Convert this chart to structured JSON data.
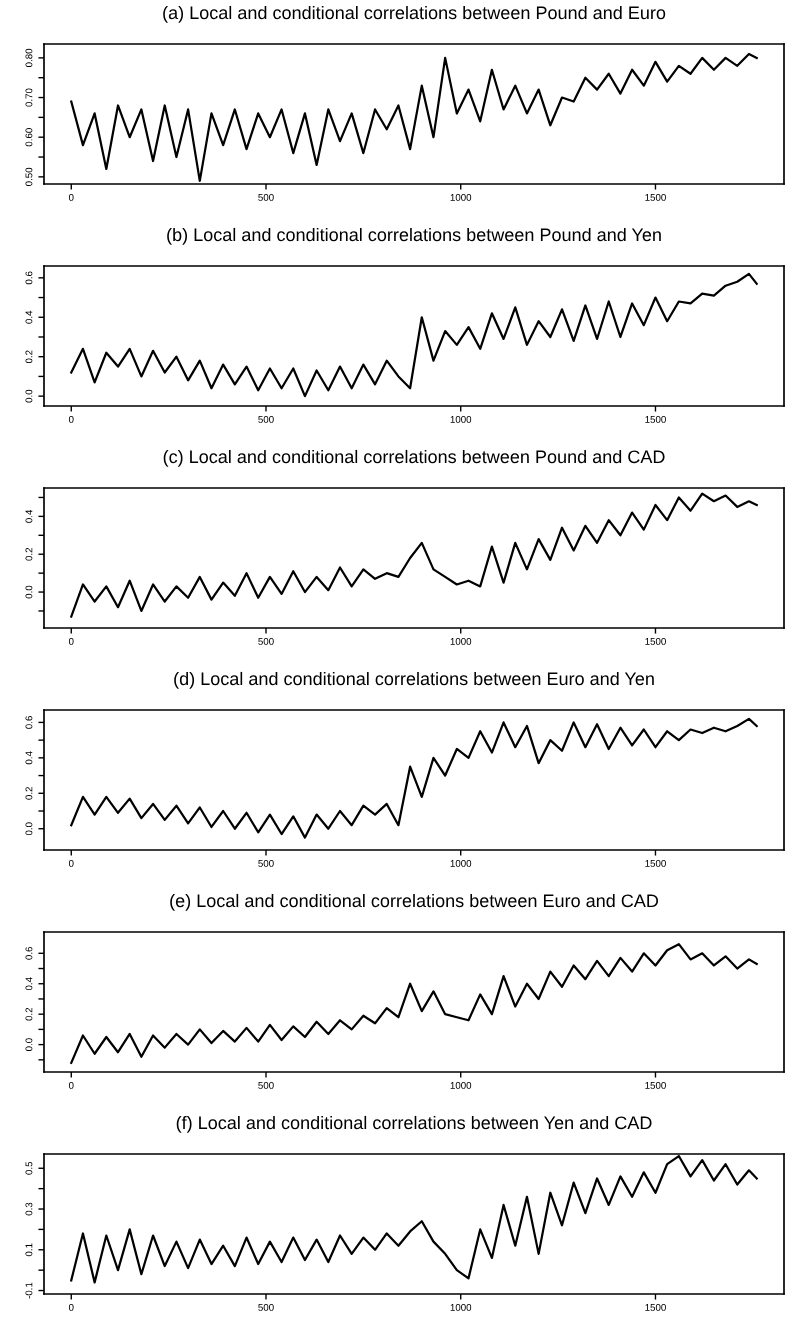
{
  "chart_data": [
    {
      "type": "line",
      "title": "(a) Local and conditional correlations between Pound and Euro",
      "color": "#000000",
      "xlim": [
        -70,
        1830
      ],
      "xticks": [
        0,
        500,
        1000,
        1500
      ],
      "ylim": [
        0.482,
        0.835
      ],
      "yticks": [
        {
          "value": 0.5,
          "label": "0.50"
        },
        {
          "value": 0.55,
          "label": null
        },
        {
          "value": 0.6,
          "label": "0.60"
        },
        {
          "value": 0.65,
          "label": null
        },
        {
          "value": 0.7,
          "label": "0.70"
        },
        {
          "value": 0.75,
          "label": null
        },
        {
          "value": 0.8,
          "label": "0.80"
        }
      ],
      "x": [
        0,
        30,
        60,
        90,
        120,
        150,
        180,
        210,
        240,
        270,
        300,
        330,
        360,
        390,
        420,
        450,
        480,
        510,
        540,
        570,
        600,
        630,
        660,
        690,
        720,
        750,
        780,
        810,
        840,
        870,
        900,
        930,
        960,
        990,
        1020,
        1050,
        1080,
        1110,
        1140,
        1170,
        1200,
        1230,
        1260,
        1290,
        1320,
        1350,
        1380,
        1410,
        1440,
        1470,
        1500,
        1530,
        1560,
        1590,
        1620,
        1650,
        1680,
        1710,
        1740,
        1760
      ],
      "values": [
        0.69,
        0.58,
        0.66,
        0.52,
        0.68,
        0.6,
        0.67,
        0.54,
        0.68,
        0.55,
        0.67,
        0.49,
        0.66,
        0.58,
        0.67,
        0.57,
        0.66,
        0.6,
        0.67,
        0.56,
        0.66,
        0.53,
        0.67,
        0.59,
        0.66,
        0.56,
        0.67,
        0.62,
        0.68,
        0.57,
        0.73,
        0.6,
        0.8,
        0.66,
        0.72,
        0.64,
        0.77,
        0.67,
        0.73,
        0.66,
        0.72,
        0.63,
        0.7,
        0.69,
        0.75,
        0.72,
        0.76,
        0.71,
        0.77,
        0.73,
        0.79,
        0.74,
        0.78,
        0.76,
        0.8,
        0.77,
        0.8,
        0.78,
        0.81,
        0.8
      ]
    },
    {
      "type": "line",
      "title": "(b) Local and conditional correlations between Pound and Yen",
      "color": "#000000",
      "xlim": [
        -70,
        1830
      ],
      "xticks": [
        0,
        500,
        1000,
        1500
      ],
      "ylim": [
        -0.05,
        0.66
      ],
      "yticks": [
        {
          "value": 0.0,
          "label": "0.0"
        },
        {
          "value": 0.1,
          "label": null
        },
        {
          "value": 0.2,
          "label": "0.2"
        },
        {
          "value": 0.3,
          "label": null
        },
        {
          "value": 0.4,
          "label": "0.4"
        },
        {
          "value": 0.5,
          "label": null
        },
        {
          "value": 0.6,
          "label": "0.6"
        }
      ],
      "x": [
        0,
        30,
        60,
        90,
        120,
        150,
        180,
        210,
        240,
        270,
        300,
        330,
        360,
        390,
        420,
        450,
        480,
        510,
        540,
        570,
        600,
        630,
        660,
        690,
        720,
        750,
        780,
        810,
        840,
        870,
        900,
        930,
        960,
        990,
        1020,
        1050,
        1080,
        1110,
        1140,
        1170,
        1200,
        1230,
        1260,
        1290,
        1320,
        1350,
        1380,
        1410,
        1440,
        1470,
        1500,
        1530,
        1560,
        1590,
        1620,
        1650,
        1680,
        1710,
        1740,
        1760
      ],
      "values": [
        0.12,
        0.24,
        0.07,
        0.22,
        0.15,
        0.24,
        0.1,
        0.23,
        0.12,
        0.2,
        0.08,
        0.18,
        0.04,
        0.16,
        0.06,
        0.15,
        0.03,
        0.14,
        0.04,
        0.14,
        0.0,
        0.13,
        0.03,
        0.15,
        0.04,
        0.16,
        0.06,
        0.18,
        0.1,
        0.04,
        0.4,
        0.18,
        0.33,
        0.26,
        0.35,
        0.24,
        0.42,
        0.29,
        0.45,
        0.26,
        0.38,
        0.3,
        0.44,
        0.28,
        0.46,
        0.29,
        0.48,
        0.3,
        0.47,
        0.36,
        0.5,
        0.38,
        0.48,
        0.47,
        0.52,
        0.51,
        0.56,
        0.58,
        0.62,
        0.57
      ]
    },
    {
      "type": "line",
      "title": "(c) Local and conditional correlations between Pound and CAD",
      "color": "#000000",
      "xlim": [
        -70,
        1830
      ],
      "xticks": [
        0,
        500,
        1000,
        1500
      ],
      "ylim": [
        -0.19,
        0.55
      ],
      "yticks": [
        {
          "value": -0.1,
          "label": null
        },
        {
          "value": 0.0,
          "label": "0.0"
        },
        {
          "value": 0.1,
          "label": null
        },
        {
          "value": 0.2,
          "label": "0.2"
        },
        {
          "value": 0.3,
          "label": null
        },
        {
          "value": 0.4,
          "label": "0.4"
        },
        {
          "value": 0.5,
          "label": null
        }
      ],
      "x": [
        0,
        30,
        60,
        90,
        120,
        150,
        180,
        210,
        240,
        270,
        300,
        330,
        360,
        390,
        420,
        450,
        480,
        510,
        540,
        570,
        600,
        630,
        660,
        690,
        720,
        750,
        780,
        810,
        840,
        870,
        900,
        930,
        960,
        990,
        1020,
        1050,
        1080,
        1110,
        1140,
        1170,
        1200,
        1230,
        1260,
        1290,
        1320,
        1350,
        1380,
        1410,
        1440,
        1470,
        1500,
        1530,
        1560,
        1590,
        1620,
        1650,
        1680,
        1710,
        1740,
        1760
      ],
      "values": [
        -0.13,
        0.04,
        -0.05,
        0.03,
        -0.08,
        0.06,
        -0.1,
        0.04,
        -0.05,
        0.03,
        -0.03,
        0.08,
        -0.04,
        0.05,
        -0.02,
        0.1,
        -0.03,
        0.08,
        -0.01,
        0.11,
        0.0,
        0.08,
        0.01,
        0.13,
        0.03,
        0.12,
        0.07,
        0.1,
        0.08,
        0.18,
        0.26,
        0.12,
        0.08,
        0.04,
        0.06,
        0.03,
        0.24,
        0.05,
        0.26,
        0.12,
        0.28,
        0.17,
        0.34,
        0.22,
        0.35,
        0.26,
        0.38,
        0.3,
        0.42,
        0.33,
        0.46,
        0.38,
        0.5,
        0.43,
        0.52,
        0.48,
        0.51,
        0.45,
        0.48,
        0.46
      ]
    },
    {
      "type": "line",
      "title": "(d) Local and conditional correlations between Euro and Yen",
      "color": "#000000",
      "xlim": [
        -70,
        1830
      ],
      "xticks": [
        0,
        500,
        1000,
        1500
      ],
      "ylim": [
        -0.12,
        0.67
      ],
      "yticks": [
        {
          "value": 0.0,
          "label": "0.0"
        },
        {
          "value": 0.1,
          "label": null
        },
        {
          "value": 0.2,
          "label": "0.2"
        },
        {
          "value": 0.3,
          "label": null
        },
        {
          "value": 0.4,
          "label": "0.4"
        },
        {
          "value": 0.5,
          "label": null
        },
        {
          "value": 0.6,
          "label": "0.6"
        }
      ],
      "x": [
        0,
        30,
        60,
        90,
        120,
        150,
        180,
        210,
        240,
        270,
        300,
        330,
        360,
        390,
        420,
        450,
        480,
        510,
        540,
        570,
        600,
        630,
        660,
        690,
        720,
        750,
        780,
        810,
        840,
        870,
        900,
        930,
        960,
        990,
        1020,
        1050,
        1080,
        1110,
        1140,
        1170,
        1200,
        1230,
        1260,
        1290,
        1320,
        1350,
        1380,
        1410,
        1440,
        1470,
        1500,
        1530,
        1560,
        1590,
        1620,
        1650,
        1680,
        1710,
        1740,
        1760
      ],
      "values": [
        0.02,
        0.18,
        0.08,
        0.18,
        0.09,
        0.17,
        0.06,
        0.14,
        0.05,
        0.13,
        0.03,
        0.12,
        0.01,
        0.1,
        0.0,
        0.09,
        -0.02,
        0.08,
        -0.03,
        0.07,
        -0.05,
        0.08,
        0.0,
        0.1,
        0.02,
        0.13,
        0.08,
        0.14,
        0.02,
        0.35,
        0.18,
        0.4,
        0.3,
        0.45,
        0.4,
        0.55,
        0.43,
        0.6,
        0.46,
        0.58,
        0.37,
        0.5,
        0.44,
        0.6,
        0.46,
        0.59,
        0.45,
        0.57,
        0.47,
        0.56,
        0.46,
        0.55,
        0.5,
        0.56,
        0.54,
        0.57,
        0.55,
        0.58,
        0.62,
        0.58
      ]
    },
    {
      "type": "line",
      "title": "(e) Local and conditional correlations between Euro and CAD",
      "color": "#000000",
      "xlim": [
        -70,
        1830
      ],
      "xticks": [
        0,
        500,
        1000,
        1500
      ],
      "ylim": [
        -0.18,
        0.74
      ],
      "yticks": [
        {
          "value": -0.1,
          "label": null
        },
        {
          "value": 0.0,
          "label": "0.0"
        },
        {
          "value": 0.1,
          "label": null
        },
        {
          "value": 0.2,
          "label": "0.2"
        },
        {
          "value": 0.3,
          "label": null
        },
        {
          "value": 0.4,
          "label": "0.4"
        },
        {
          "value": 0.5,
          "label": null
        },
        {
          "value": 0.6,
          "label": "0.6"
        }
      ],
      "x": [
        0,
        30,
        60,
        90,
        120,
        150,
        180,
        210,
        240,
        270,
        300,
        330,
        360,
        390,
        420,
        450,
        480,
        510,
        540,
        570,
        600,
        630,
        660,
        690,
        720,
        750,
        780,
        810,
        840,
        870,
        900,
        930,
        960,
        990,
        1020,
        1050,
        1080,
        1110,
        1140,
        1170,
        1200,
        1230,
        1260,
        1290,
        1320,
        1350,
        1380,
        1410,
        1440,
        1470,
        1500,
        1530,
        1560,
        1590,
        1620,
        1650,
        1680,
        1710,
        1740,
        1760
      ],
      "values": [
        -0.12,
        0.06,
        -0.06,
        0.05,
        -0.05,
        0.07,
        -0.08,
        0.06,
        -0.02,
        0.07,
        0.0,
        0.1,
        0.01,
        0.09,
        0.02,
        0.11,
        0.02,
        0.13,
        0.03,
        0.12,
        0.05,
        0.15,
        0.07,
        0.16,
        0.1,
        0.19,
        0.14,
        0.24,
        0.18,
        0.4,
        0.22,
        0.35,
        0.2,
        0.18,
        0.16,
        0.33,
        0.2,
        0.45,
        0.25,
        0.4,
        0.3,
        0.48,
        0.38,
        0.52,
        0.43,
        0.55,
        0.45,
        0.57,
        0.48,
        0.6,
        0.52,
        0.62,
        0.66,
        0.56,
        0.6,
        0.52,
        0.58,
        0.5,
        0.56,
        0.53
      ]
    },
    {
      "type": "line",
      "title": "(f) Local and conditional correlations between Yen and CAD",
      "color": "#000000",
      "xlim": [
        -70,
        1830
      ],
      "xticks": [
        0,
        500,
        1000,
        1500
      ],
      "ylim": [
        -0.117,
        0.57
      ],
      "yticks": [
        {
          "value": -0.1,
          "label": "-0.1"
        },
        {
          "value": 0.0,
          "label": null
        },
        {
          "value": 0.1,
          "label": "0.1"
        },
        {
          "value": 0.2,
          "label": null
        },
        {
          "value": 0.3,
          "label": "0.3"
        },
        {
          "value": 0.4,
          "label": null
        },
        {
          "value": 0.5,
          "label": "0.5"
        }
      ],
      "x": [
        0,
        30,
        60,
        90,
        120,
        150,
        180,
        210,
        240,
        270,
        300,
        330,
        360,
        390,
        420,
        450,
        480,
        510,
        540,
        570,
        600,
        630,
        660,
        690,
        720,
        750,
        780,
        810,
        840,
        870,
        900,
        930,
        960,
        990,
        1020,
        1050,
        1080,
        1110,
        1140,
        1170,
        1200,
        1230,
        1260,
        1290,
        1320,
        1350,
        1380,
        1410,
        1440,
        1470,
        1500,
        1530,
        1560,
        1590,
        1620,
        1650,
        1680,
        1710,
        1740,
        1760
      ],
      "values": [
        -0.05,
        0.18,
        -0.06,
        0.17,
        0.0,
        0.2,
        -0.02,
        0.17,
        0.02,
        0.14,
        0.01,
        0.15,
        0.03,
        0.12,
        0.02,
        0.16,
        0.03,
        0.14,
        0.04,
        0.16,
        0.05,
        0.15,
        0.04,
        0.17,
        0.08,
        0.16,
        0.1,
        0.18,
        0.12,
        0.19,
        0.24,
        0.14,
        0.08,
        0.0,
        -0.04,
        0.2,
        0.06,
        0.32,
        0.12,
        0.36,
        0.08,
        0.38,
        0.22,
        0.43,
        0.28,
        0.45,
        0.32,
        0.46,
        0.36,
        0.48,
        0.38,
        0.52,
        0.56,
        0.46,
        0.54,
        0.44,
        0.52,
        0.42,
        0.49,
        0.45
      ]
    }
  ]
}
